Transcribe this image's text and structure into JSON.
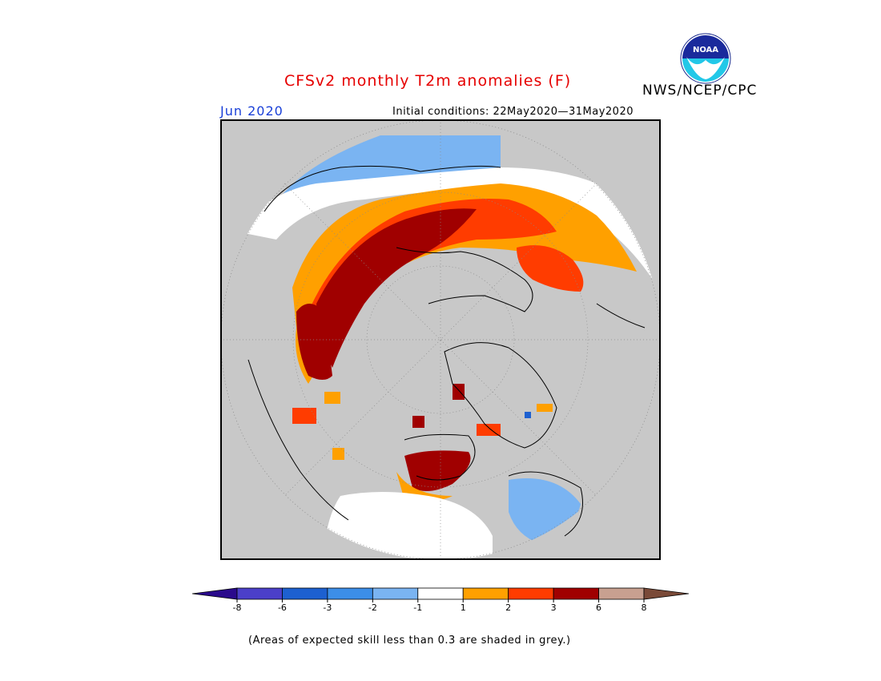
{
  "header": {
    "title": "CFSv2 monthly T2m anomalies (F)",
    "agency": "NWS/NCEP/CPC",
    "logo_text": "NOAA",
    "month": "Jun 2020",
    "initial_conditions": "Initial conditions: 22May2020—31May2020"
  },
  "colorbar": {
    "bins": [
      {
        "color": "#2a0a8c"
      },
      {
        "color": "#4b3fc9"
      },
      {
        "color": "#1d60d0"
      },
      {
        "color": "#3c8ee8"
      },
      {
        "color": "#7ab4f2"
      },
      {
        "color": "#ffffff"
      },
      {
        "color": "#ffa000"
      },
      {
        "color": "#ff3c00"
      },
      {
        "color": "#a00000"
      },
      {
        "color": "#c8a090"
      },
      {
        "color": "#7a4a38"
      }
    ],
    "tick_labels": [
      "-8",
      "-6",
      "-3",
      "-2",
      "-1",
      "1",
      "2",
      "3",
      "6",
      "8"
    ]
  },
  "footnote": "(Areas of expected skill less than 0.3 are shaded in grey.)",
  "map": {
    "projection": "north polar stereographic",
    "background_color": "#c8c8c8",
    "regions": [
      {
        "name": "eurasia-warm-band",
        "category": "+1 to +2",
        "color": "#ffa000"
      },
      {
        "name": "siberia-core",
        "category": "+3 to +6",
        "color": "#a00000"
      },
      {
        "name": "hudson-bay",
        "category": "+3 to +6",
        "color": "#a00000"
      },
      {
        "name": "eastern-siberia",
        "category": "+2 to +3",
        "color": "#ff3c00"
      },
      {
        "name": "africa-cool",
        "category": "-2 to -1",
        "color": "#7ab4f2"
      },
      {
        "name": "north-atlantic-cool",
        "category": "-2 to -1",
        "color": "#7ab4f2"
      }
    ]
  }
}
